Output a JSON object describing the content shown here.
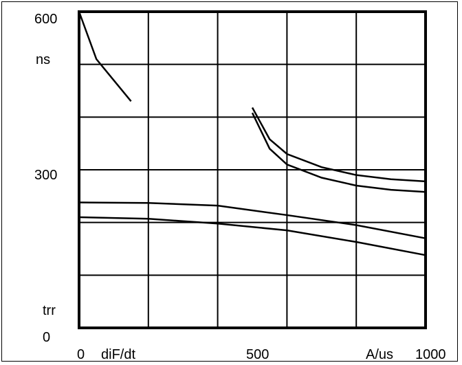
{
  "chart_data": {
    "type": "line",
    "title": "",
    "xlabel_left": "diF/dt",
    "xlabel_right": "A/us",
    "ylabel_top": "ns",
    "ylabel_bottom": "trr",
    "x_ticks": [
      "0",
      "500",
      "1000"
    ],
    "y_ticks": [
      "600",
      "300",
      "0"
    ],
    "xlim": [
      0,
      1000
    ],
    "ylim": [
      0,
      600
    ],
    "grid": true,
    "series": [
      {
        "values": [
          [
            0,
            600
          ],
          [
            50,
            510
          ],
          [
            100,
            470
          ],
          [
            150,
            430
          ]
        ]
      },
      {
        "values": [
          [
            0,
            238
          ],
          [
            200,
            237
          ],
          [
            400,
            232
          ],
          [
            600,
            214
          ],
          [
            800,
            195
          ],
          [
            1000,
            170
          ]
        ]
      },
      {
        "values": [
          [
            0,
            210
          ],
          [
            200,
            207
          ],
          [
            400,
            198
          ],
          [
            600,
            185
          ],
          [
            800,
            163
          ],
          [
            1000,
            138
          ]
        ]
      },
      {
        "values": [
          [
            500,
            418
          ],
          [
            550,
            358
          ],
          [
            600,
            330
          ],
          [
            700,
            305
          ],
          [
            800,
            290
          ],
          [
            900,
            282
          ],
          [
            1000,
            278
          ]
        ]
      },
      {
        "values": [
          [
            500,
            408
          ],
          [
            550,
            340
          ],
          [
            600,
            310
          ],
          [
            700,
            285
          ],
          [
            800,
            270
          ],
          [
            900,
            262
          ],
          [
            1000,
            258
          ]
        ]
      }
    ]
  }
}
